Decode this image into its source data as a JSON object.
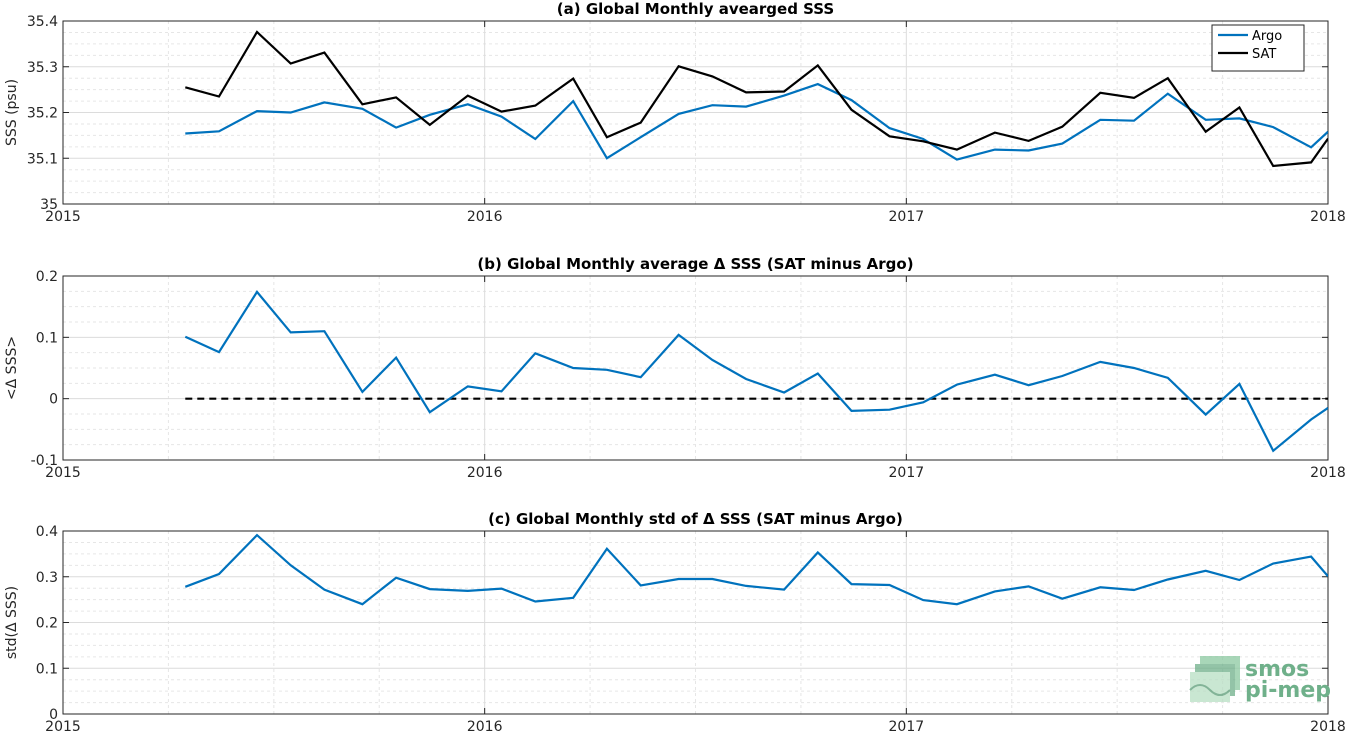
{
  "chart_data": [
    {
      "type": "line",
      "title": "(a) Global Monthly avearged SSS",
      "xlabel": "",
      "ylabel": "SSS (psu)",
      "xlim": [
        2015,
        2018
      ],
      "ylim": [
        35.0,
        35.4
      ],
      "xticks": [
        "2015",
        "2016",
        "2017",
        "2018"
      ],
      "yticks": [
        "35",
        "35.1",
        "35.2",
        "35.3",
        "35.4"
      ],
      "grid": true,
      "legend": "top-right",
      "x": [
        2015.29,
        2015.37,
        2015.46,
        2015.54,
        2015.62,
        2015.71,
        2015.79,
        2015.87,
        2015.96,
        2016.04,
        2016.12,
        2016.21,
        2016.29,
        2016.37,
        2016.46,
        2016.54,
        2016.62,
        2016.71,
        2016.79,
        2016.87,
        2016.96,
        2017.04,
        2017.12,
        2017.21,
        2017.29,
        2017.37,
        2017.46,
        2017.54,
        2017.62,
        2017.71,
        2017.79,
        2017.87,
        2017.96,
        2018.0
      ],
      "series": [
        {
          "name": "Argo",
          "color": "#0072bd",
          "values": [
            35.154,
            35.159,
            35.203,
            35.2,
            35.222,
            35.208,
            35.167,
            35.195,
            35.218,
            35.191,
            35.142,
            35.225,
            35.1,
            35.146,
            35.197,
            35.216,
            35.213,
            35.237,
            35.262,
            35.227,
            35.166,
            35.142,
            35.097,
            35.119,
            35.117,
            35.132,
            35.184,
            35.182,
            35.241,
            35.184,
            35.187,
            35.168,
            35.124,
            35.158
          ]
        },
        {
          "name": "SAT",
          "color": "#000000",
          "values": [
            35.255,
            35.235,
            35.376,
            35.307,
            35.331,
            35.218,
            35.233,
            35.173,
            35.237,
            35.202,
            35.215,
            35.274,
            35.146,
            35.178,
            35.301,
            35.279,
            35.244,
            35.246,
            35.303,
            35.206,
            35.148,
            35.137,
            35.119,
            35.156,
            35.138,
            35.169,
            35.243,
            35.232,
            35.275,
            35.158,
            35.211,
            35.083,
            35.091,
            35.143
          ]
        }
      ]
    },
    {
      "type": "line",
      "title": "(b) Global Monthly average Δ SSS (SAT minus Argo)",
      "xlabel": "",
      "ylabel": "<Δ SSS>",
      "xlim": [
        2015,
        2018
      ],
      "ylim": [
        -0.1,
        0.2
      ],
      "xticks": [
        "2015",
        "2016",
        "2017",
        "2018"
      ],
      "yticks": [
        "-0.1",
        "0",
        "0.1",
        "0.2"
      ],
      "grid": true,
      "reference_line": {
        "y": 0,
        "x_from": 2015.29,
        "x_to": 2018.0,
        "style": "dashed",
        "color": "#000000"
      },
      "x": [
        2015.29,
        2015.37,
        2015.46,
        2015.54,
        2015.62,
        2015.71,
        2015.79,
        2015.87,
        2015.96,
        2016.04,
        2016.12,
        2016.21,
        2016.29,
        2016.37,
        2016.46,
        2016.54,
        2016.62,
        2016.71,
        2016.79,
        2016.87,
        2016.96,
        2017.04,
        2017.12,
        2017.21,
        2017.29,
        2017.37,
        2017.46,
        2017.54,
        2017.62,
        2017.71,
        2017.79,
        2017.87,
        2017.96,
        2018.0
      ],
      "series": [
        {
          "color": "#0072bd",
          "values": [
            0.101,
            0.076,
            0.174,
            0.108,
            0.11,
            0.011,
            0.067,
            -0.022,
            0.02,
            0.012,
            0.074,
            0.05,
            0.047,
            0.035,
            0.104,
            0.063,
            0.032,
            0.01,
            0.041,
            -0.02,
            -0.018,
            -0.006,
            0.023,
            0.039,
            0.022,
            0.037,
            0.06,
            0.05,
            0.034,
            -0.026,
            0.024,
            -0.085,
            -0.034,
            -0.015
          ]
        }
      ]
    },
    {
      "type": "line",
      "title": "(c) Global Monthly std of Δ SSS (SAT minus Argo)",
      "xlabel": "",
      "ylabel": "std(Δ SSS)",
      "xlim": [
        2015,
        2018
      ],
      "ylim": [
        0,
        0.4
      ],
      "xticks": [
        "2015",
        "2016",
        "2017",
        "2018"
      ],
      "yticks": [
        "0",
        "0.1",
        "0.2",
        "0.3",
        "0.4"
      ],
      "grid": true,
      "x": [
        2015.29,
        2015.37,
        2015.46,
        2015.54,
        2015.62,
        2015.71,
        2015.79,
        2015.87,
        2015.96,
        2016.04,
        2016.12,
        2016.21,
        2016.29,
        2016.37,
        2016.46,
        2016.54,
        2016.62,
        2016.71,
        2016.79,
        2016.87,
        2016.96,
        2017.04,
        2017.12,
        2017.21,
        2017.29,
        2017.37,
        2017.46,
        2017.54,
        2017.62,
        2017.71,
        2017.79,
        2017.87,
        2017.96,
        2018.0
      ],
      "series": [
        {
          "color": "#0072bd",
          "values": [
            0.278,
            0.306,
            0.391,
            0.325,
            0.272,
            0.24,
            0.298,
            0.273,
            0.269,
            0.274,
            0.246,
            0.254,
            0.361,
            0.281,
            0.295,
            0.295,
            0.28,
            0.272,
            0.353,
            0.284,
            0.282,
            0.249,
            0.24,
            0.268,
            0.279,
            0.252,
            0.277,
            0.271,
            0.294,
            0.313,
            0.293,
            0.329,
            0.344,
            0.301
          ]
        }
      ]
    }
  ],
  "logo": {
    "line1": "smos",
    "line2": "pi-mep"
  }
}
